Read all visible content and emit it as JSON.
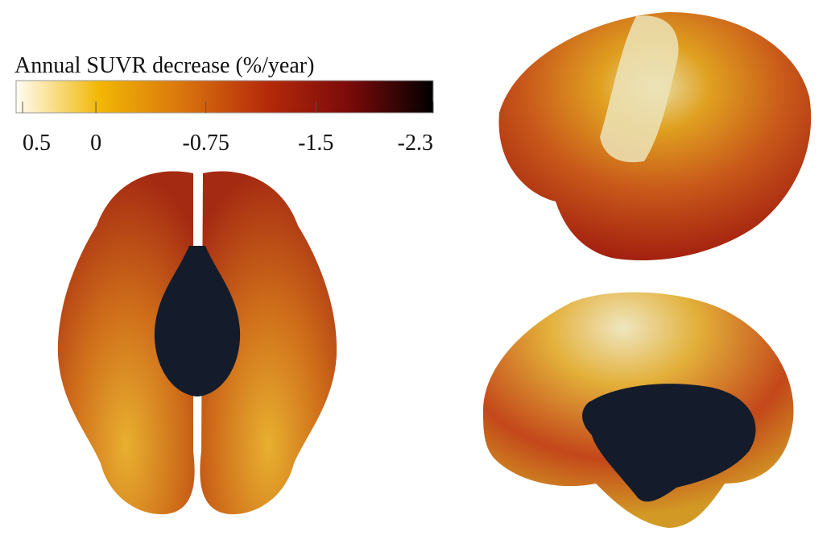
{
  "colorbar": {
    "title": "Annual SUVR decrease (%/year)",
    "range": [
      0.5,
      -2.3
    ],
    "ticks": [
      0.5,
      0,
      -0.75,
      -1.5,
      -2.3
    ],
    "colors": [
      "#fffdf5",
      "#f2b705",
      "#d9740f",
      "#b52a0a",
      "#7a0a0a",
      "#000000"
    ]
  }
}
